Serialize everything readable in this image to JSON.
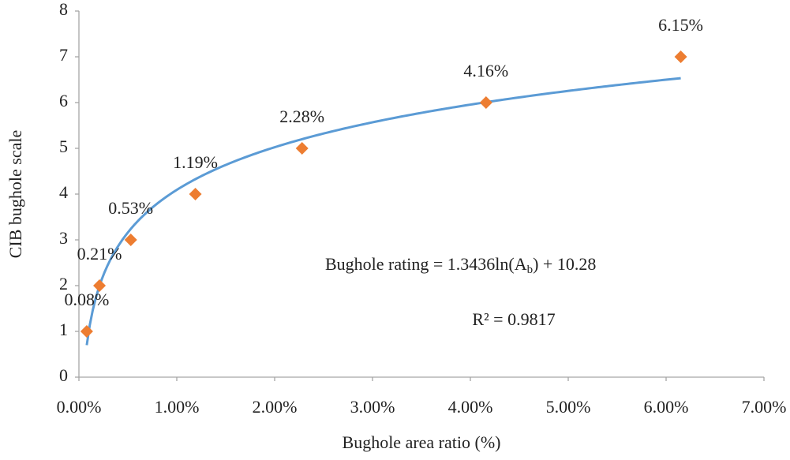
{
  "chart_data": {
    "type": "scatter",
    "x_label": "Bughole area ratio (%)",
    "y_label": "CIB bughole scale",
    "series": [
      {
        "name": "CIB bughole scale",
        "color": "#ed7d31",
        "x": [
          0.08,
          0.21,
          0.53,
          1.19,
          2.28,
          4.16,
          6.15
        ],
        "values": [
          1,
          2,
          3,
          4,
          5,
          6,
          7
        ],
        "x_labels": [
          "0.08%",
          "0.21%",
          "0.53%",
          "1.19%",
          "2.28%",
          "4.16%",
          "6.15%"
        ]
      }
    ],
    "trendline": {
      "type": "log",
      "color": "#5b9bd5",
      "a": 1.3436,
      "b": 10.28,
      "equation": [
        "Bughole rating = 1.3436ln(A",
        "b",
        ") + 10.28"
      ],
      "r2_text": "R² = 0.9817"
    },
    "xlim": [
      0,
      7
    ],
    "xticks": [
      {
        "value": 0,
        "label": "0.00%"
      },
      {
        "value": 1,
        "label": "1.00%"
      },
      {
        "value": 2,
        "label": "2.00%"
      },
      {
        "value": 3,
        "label": "3.00%"
      },
      {
        "value": 4,
        "label": "4.00%"
      },
      {
        "value": 5,
        "label": "5.00%"
      },
      {
        "value": 6,
        "label": "6.00%"
      },
      {
        "value": 7,
        "label": "7.00%"
      }
    ],
    "ylim": [
      0,
      8
    ],
    "yticks": [
      0,
      1,
      2,
      3,
      4,
      5,
      6,
      7,
      8
    ],
    "grid": false
  }
}
